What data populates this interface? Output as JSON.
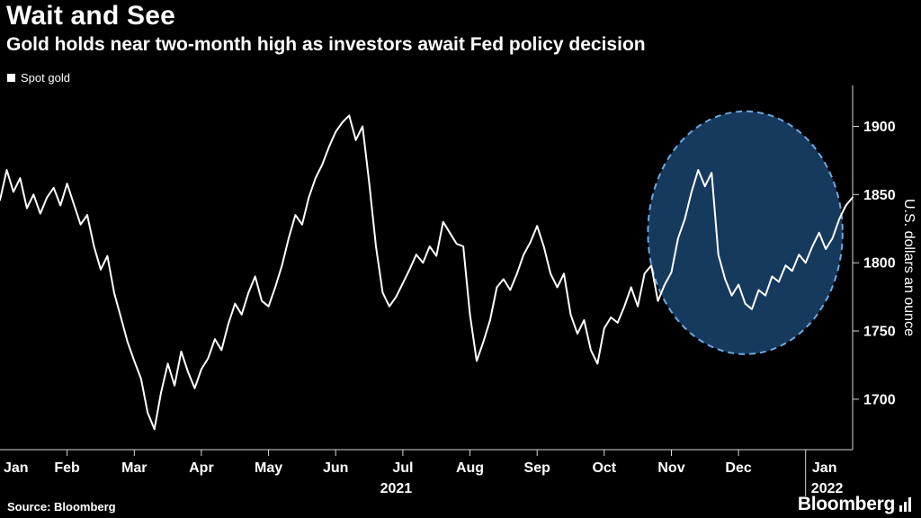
{
  "header": {
    "title": "Wait and See",
    "subtitle": "Gold holds near two-month high as investors await Fed policy decision"
  },
  "legend": {
    "label": "Spot gold",
    "marker_color": "#ffffff"
  },
  "footer": {
    "source": "Source: Bloomberg",
    "brand": "Bloomberg"
  },
  "colors": {
    "background": "#000000",
    "line": "#ffffff",
    "axis": "#d9d9d9",
    "text": "#ffffff",
    "highlight_fill": "#16395e",
    "highlight_stroke": "#6fa8dc"
  },
  "chart_data": {
    "type": "line",
    "title": "Wait and See",
    "subtitle": "Gold holds near two-month high as investors await Fed policy decision",
    "ylabel": "U.S. dollars an ounce",
    "ylim": [
      1663,
      1930
    ],
    "xlim": [
      0,
      12.7
    ],
    "yticks": [
      1700,
      1750,
      1800,
      1850,
      1900
    ],
    "x_month_ticks": [
      0,
      1,
      2,
      3,
      4,
      5,
      6,
      7,
      8,
      9,
      10,
      11,
      12
    ],
    "month_labels": [
      "Jan",
      "Feb",
      "Mar",
      "Apr",
      "May",
      "Jun",
      "Jul",
      "Aug",
      "Sep",
      "Oct",
      "Nov",
      "Dec",
      "Jan"
    ],
    "year_labels": [
      {
        "label": "2021",
        "month": 5.9
      },
      {
        "label": "2022",
        "month": 12.32
      }
    ],
    "year_separator_month": 12,
    "highlight_ellipse": {
      "cx_month": 11.1,
      "cy_value": 1822,
      "rx_month": 1.45,
      "ry_value": 89
    },
    "series": [
      {
        "name": "Spot gold",
        "x_start": 0,
        "x_step": 0.1,
        "values": [
          1846,
          1868,
          1852,
          1862,
          1840,
          1850,
          1836,
          1848,
          1855,
          1842,
          1858,
          1843,
          1828,
          1835,
          1812,
          1795,
          1805,
          1778,
          1760,
          1742,
          1728,
          1715,
          1690,
          1678,
          1705,
          1726,
          1710,
          1735,
          1720,
          1708,
          1722,
          1730,
          1744,
          1736,
          1755,
          1770,
          1762,
          1778,
          1790,
          1772,
          1768,
          1782,
          1798,
          1818,
          1835,
          1828,
          1848,
          1862,
          1872,
          1885,
          1896,
          1903,
          1908,
          1890,
          1900,
          1858,
          1812,
          1778,
          1768,
          1775,
          1785,
          1795,
          1806,
          1800,
          1812,
          1805,
          1830,
          1822,
          1814,
          1812,
          1762,
          1728,
          1742,
          1758,
          1782,
          1788,
          1780,
          1792,
          1806,
          1815,
          1827,
          1812,
          1792,
          1782,
          1792,
          1762,
          1748,
          1758,
          1736,
          1726,
          1752,
          1760,
          1756,
          1768,
          1782,
          1768,
          1792,
          1798,
          1772,
          1784,
          1793,
          1818,
          1832,
          1852,
          1868,
          1856,
          1866,
          1806,
          1788,
          1776,
          1784,
          1770,
          1766,
          1780,
          1776,
          1790,
          1786,
          1798,
          1794,
          1806,
          1800,
          1812,
          1822,
          1810,
          1818,
          1832,
          1842,
          1848
        ]
      }
    ]
  }
}
